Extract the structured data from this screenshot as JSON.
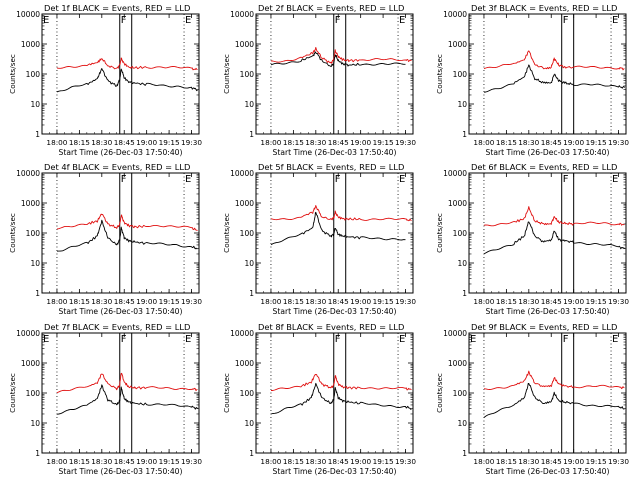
{
  "figure": {
    "title_suffix": "BLACK = Events, RED = LLD",
    "xlabel": "Start Time (26-Dec-03 17:50:40)",
    "ylabel": "Counts/sec",
    "colors": {
      "events": "#000000",
      "lld": "#e01010",
      "axes": "#000000"
    }
  },
  "chart_data": [
    {
      "type": "line",
      "title": "Det 1f BLACK = Events, RED = LLD",
      "detector": "Det 1f",
      "xlabel": "Start Time (26-Dec-03 17:50:40)",
      "ylabel": "Counts/sec",
      "yscale": "log",
      "ylim": [
        1,
        10000
      ],
      "y_ticks": [
        "1",
        "10",
        "100",
        "1000",
        "10000"
      ],
      "x_ticks": [
        "18:00",
        "18:15",
        "18:30",
        "18:45",
        "19:00",
        "19:15",
        "19:30"
      ],
      "xlim_minutes_after_1750": [
        0,
        105
      ],
      "dotted_lines_min": [
        10,
        95
      ],
      "solid_lines_min": [
        52,
        60
      ],
      "markers": [
        {
          "label": "E",
          "at_min": 0
        },
        {
          "label": "F",
          "at_min": 52
        },
        {
          "label": "E",
          "at_min": 95
        }
      ],
      "x_minutes_after_1750": [
        10,
        20,
        30,
        37,
        40,
        44,
        50,
        52,
        53,
        55,
        58,
        62,
        70,
        80,
        90,
        100,
        104
      ],
      "series": [
        {
          "name": "LLD (red)",
          "values": [
            150,
            170,
            200,
            240,
            330,
            190,
            150,
            200,
            330,
            220,
            170,
            160,
            170,
            175,
            165,
            150,
            140
          ]
        },
        {
          "name": "Events (black)",
          "values": [
            25,
            35,
            45,
            70,
            150,
            60,
            40,
            65,
            150,
            75,
            55,
            50,
            45,
            42,
            40,
            35,
            30
          ]
        }
      ]
    },
    {
      "type": "line",
      "title": "Det 2f BLACK = Events, RED = LLD",
      "detector": "Det 2f",
      "xlabel": "Start Time (26-Dec-03 17:50:40)",
      "ylabel": "Counts/sec",
      "yscale": "log",
      "ylim": [
        1,
        10000
      ],
      "y_ticks": [
        "1",
        "10",
        "100",
        "1000",
        "10000"
      ],
      "x_ticks": [
        "18:00",
        "18:15",
        "18:30",
        "18:45",
        "19:00",
        "19:15",
        "19:30"
      ],
      "xlim_minutes_after_1750": [
        0,
        105
      ],
      "dotted_lines_min": [
        10,
        95
      ],
      "solid_lines_min": [
        52,
        60
      ],
      "markers": [
        {
          "label": "F",
          "at_min": 52
        },
        {
          "label": "E",
          "at_min": 95
        }
      ],
      "x_minutes_after_1750": [
        10,
        20,
        30,
        38,
        40,
        44,
        50,
        52,
        53,
        55,
        58,
        62,
        70,
        80,
        90,
        100,
        104
      ],
      "series": [
        {
          "name": "LLD (red)",
          "values": [
            260,
            280,
            350,
            500,
            700,
            350,
            230,
            300,
            600,
            380,
            300,
            280,
            290,
            300,
            300,
            290,
            280
          ]
        },
        {
          "name": "Events (black)",
          "values": [
            200,
            220,
            280,
            400,
            550,
            280,
            180,
            220,
            450,
            280,
            220,
            200,
            210,
            220,
            220,
            210,
            null
          ]
        }
      ]
    },
    {
      "type": "line",
      "title": "Det 3f BLACK = Events, RED = LLD",
      "detector": "Det 3f",
      "xlabel": "Start Time (26-Dec-03 17:50:40)",
      "ylabel": "Counts/sec",
      "yscale": "log",
      "ylim": [
        1,
        10000
      ],
      "y_ticks": [
        "1",
        "10",
        "100",
        "1000",
        "10000"
      ],
      "x_ticks": [
        "18:00",
        "18:15",
        "18:30",
        "18:45",
        "19:00",
        "19:15",
        "19:30"
      ],
      "xlim_minutes_after_1750": [
        0,
        105
      ],
      "dotted_lines_min": [
        10,
        95
      ],
      "solid_lines_min": [
        62,
        70
      ],
      "markers": [
        {
          "label": "F",
          "at_min": 62
        },
        {
          "label": "E",
          "at_min": 95
        }
      ],
      "x_minutes_after_1750": [
        10,
        20,
        30,
        37,
        40,
        44,
        50,
        55,
        57,
        60,
        64,
        70,
        80,
        90,
        100,
        104
      ],
      "series": [
        {
          "name": "LLD (red)",
          "values": [
            160,
            180,
            220,
            300,
            600,
            200,
            160,
            170,
            330,
            200,
            170,
            165,
            170,
            170,
            160,
            150
          ]
        },
        {
          "name": "Events (black)",
          "values": [
            25,
            35,
            50,
            80,
            200,
            70,
            50,
            50,
            100,
            60,
            50,
            45,
            45,
            40,
            38,
            35
          ]
        }
      ]
    },
    {
      "type": "line",
      "title": "Det 4f BLACK = Events, RED = LLD",
      "detector": "Det 4f",
      "xlabel": "Start Time (26-Dec-03 17:50:40)",
      "ylabel": "Counts/sec",
      "yscale": "log",
      "ylim": [
        1,
        10000
      ],
      "y_ticks": [
        "1",
        "10",
        "100",
        "1000",
        "10000"
      ],
      "x_ticks": [
        "18:00",
        "18:15",
        "18:30",
        "18:45",
        "19:00",
        "19:15",
        "19:30"
      ],
      "xlim_minutes_after_1750": [
        0,
        105
      ],
      "dotted_lines_min": [
        10,
        95
      ],
      "solid_lines_min": [
        52,
        60
      ],
      "markers": [
        {
          "label": "F",
          "at_min": 52
        },
        {
          "label": "E",
          "at_min": 95
        }
      ],
      "x_minutes_after_1750": [
        10,
        20,
        30,
        37,
        40,
        44,
        50,
        52,
        53,
        55,
        58,
        62,
        70,
        80,
        90,
        100,
        104
      ],
      "series": [
        {
          "name": "LLD (red)",
          "values": [
            140,
            160,
            200,
            250,
            450,
            200,
            150,
            190,
            400,
            220,
            180,
            160,
            170,
            180,
            170,
            150,
            120
          ]
        },
        {
          "name": "Events (black)",
          "values": [
            25,
            35,
            45,
            80,
            250,
            70,
            40,
            60,
            150,
            70,
            55,
            50,
            45,
            42,
            40,
            35,
            30
          ]
        }
      ]
    },
    {
      "type": "line",
      "title": "Det 5f BLACK = Events, RED = LLD",
      "detector": "Det 5f",
      "xlabel": "Start Time (26-Dec-03 17:50:40)",
      "ylabel": "Counts/sec",
      "yscale": "log",
      "ylim": [
        1,
        10000
      ],
      "y_ticks": [
        "1",
        "10",
        "100",
        "1000",
        "10000"
      ],
      "x_ticks": [
        "18:00",
        "18:15",
        "18:30",
        "18:45",
        "19:00",
        "19:15",
        "19:30"
      ],
      "xlim_minutes_after_1750": [
        0,
        105
      ],
      "dotted_lines_min": [
        10,
        95
      ],
      "solid_lines_min": [
        52,
        60
      ],
      "markers": [
        {
          "label": "F",
          "at_min": 52
        },
        {
          "label": "E",
          "at_min": 95
        }
      ],
      "x_minutes_after_1750": [
        10,
        20,
        30,
        38,
        40,
        44,
        50,
        52,
        53,
        55,
        58,
        62,
        70,
        80,
        90,
        100,
        104
      ],
      "series": [
        {
          "name": "LLD (red)",
          "values": [
            280,
            290,
            340,
            500,
            800,
            350,
            280,
            320,
            500,
            340,
            300,
            290,
            290,
            290,
            285,
            280,
            260
          ]
        },
        {
          "name": "Events (black)",
          "values": [
            40,
            60,
            90,
            150,
            500,
            120,
            80,
            90,
            150,
            90,
            80,
            75,
            70,
            68,
            65,
            60,
            null
          ]
        }
      ]
    },
    {
      "type": "line",
      "title": "Det 6f BLACK = Events, RED = LLD",
      "detector": "Det 6f",
      "xlabel": "Start Time (26-Dec-03 17:50:40)",
      "ylabel": "Counts/sec",
      "yscale": "log",
      "ylim": [
        1,
        10000
      ],
      "y_ticks": [
        "1",
        "10",
        "100",
        "1000",
        "10000"
      ],
      "x_ticks": [
        "18:00",
        "18:15",
        "18:30",
        "18:45",
        "19:00",
        "19:15",
        "19:30"
      ],
      "xlim_minutes_after_1750": [
        0,
        105
      ],
      "dotted_lines_min": [
        10,
        95
      ],
      "solid_lines_min": [
        62,
        70
      ],
      "markers": [
        {
          "label": "F",
          "at_min": 62
        },
        {
          "label": "E",
          "at_min": 95
        }
      ],
      "x_minutes_after_1750": [
        10,
        20,
        30,
        37,
        40,
        44,
        50,
        55,
        57,
        60,
        64,
        70,
        80,
        90,
        100,
        104
      ],
      "series": [
        {
          "name": "LLD (red)",
          "values": [
            180,
            200,
            230,
            300,
            700,
            250,
            200,
            210,
            350,
            230,
            210,
            200,
            210,
            210,
            200,
            190
          ]
        },
        {
          "name": "Events (black)",
          "values": [
            20,
            30,
            45,
            80,
            250,
            80,
            50,
            55,
            120,
            60,
            55,
            50,
            45,
            40,
            35,
            30
          ]
        }
      ]
    },
    {
      "type": "line",
      "title": "Det 7f BLACK = Events, RED = LLD",
      "detector": "Det 7f",
      "xlabel": "Start Time (26-Dec-03 17:50:40)",
      "ylabel": "Counts/sec",
      "yscale": "log",
      "ylim": [
        1,
        10000
      ],
      "y_ticks": [
        "1",
        "10",
        "100",
        "1000",
        "10000"
      ],
      "x_ticks": [
        "18:00",
        "18:15",
        "18:30",
        "18:45",
        "19:00",
        "19:15",
        "19:30"
      ],
      "xlim_minutes_after_1750": [
        0,
        105
      ],
      "dotted_lines_min": [
        10,
        95
      ],
      "solid_lines_min": [
        52,
        60
      ],
      "markers": [
        {
          "label": "E",
          "at_min": 0
        },
        {
          "label": "F",
          "at_min": 52
        },
        {
          "label": "E",
          "at_min": 95
        }
      ],
      "x_minutes_after_1750": [
        10,
        20,
        30,
        37,
        40,
        44,
        50,
        52,
        53,
        55,
        58,
        62,
        70,
        80,
        90,
        100,
        104
      ],
      "series": [
        {
          "name": "LLD (red)",
          "values": [
            110,
            130,
            160,
            220,
            450,
            200,
            140,
            180,
            500,
            230,
            160,
            150,
            150,
            150,
            145,
            140,
            130
          ]
        },
        {
          "name": "Events (black)",
          "values": [
            20,
            30,
            40,
            65,
            180,
            60,
            40,
            55,
            150,
            65,
            50,
            45,
            42,
            40,
            38,
            35,
            30
          ]
        }
      ]
    },
    {
      "type": "line",
      "title": "Det 8f BLACK = Events, RED = LLD",
      "detector": "Det 8f",
      "xlabel": "Start Time (26-Dec-03 17:50:40)",
      "ylabel": "Counts/sec",
      "yscale": "log",
      "ylim": [
        1,
        10000
      ],
      "y_ticks": [
        "1",
        "10",
        "100",
        "1000",
        "10000"
      ],
      "x_ticks": [
        "18:00",
        "18:15",
        "18:30",
        "18:45",
        "19:00",
        "19:15",
        "19:30"
      ],
      "xlim_minutes_after_1750": [
        0,
        105
      ],
      "dotted_lines_min": [
        10,
        95
      ],
      "solid_lines_min": [
        52,
        60
      ],
      "markers": [
        {
          "label": "F",
          "at_min": 52
        },
        {
          "label": "E",
          "at_min": 95
        }
      ],
      "x_minutes_after_1750": [
        10,
        20,
        30,
        37,
        40,
        44,
        50,
        52,
        53,
        55,
        58,
        62,
        70,
        80,
        90,
        100,
        104
      ],
      "series": [
        {
          "name": "LLD (red)",
          "values": [
            120,
            140,
            170,
            230,
            450,
            200,
            150,
            180,
            380,
            200,
            160,
            150,
            150,
            150,
            145,
            140,
            130
          ]
        },
        {
          "name": "Events (black)",
          "values": [
            20,
            30,
            40,
            70,
            200,
            70,
            45,
            60,
            150,
            70,
            55,
            50,
            45,
            40,
            38,
            35,
            30
          ]
        }
      ]
    },
    {
      "type": "line",
      "title": "Det 9f BLACK = Events, RED = LLD",
      "detector": "Det 9f",
      "xlabel": "Start Time (26-Dec-03 17:50:40)",
      "ylabel": "Counts/sec",
      "yscale": "log",
      "ylim": [
        1,
        10000
      ],
      "y_ticks": [
        "1",
        "10",
        "100",
        "1000",
        "10000"
      ],
      "x_ticks": [
        "18:00",
        "18:15",
        "18:30",
        "18:45",
        "19:00",
        "19:15",
        "19:30"
      ],
      "xlim_minutes_after_1750": [
        0,
        105
      ],
      "dotted_lines_min": [
        10,
        95
      ],
      "solid_lines_min": [
        62,
        70
      ],
      "markers": [
        {
          "label": "E",
          "at_min": 0
        },
        {
          "label": "F",
          "at_min": 62
        },
        {
          "label": "E",
          "at_min": 95
        }
      ],
      "x_minutes_after_1750": [
        10,
        20,
        30,
        37,
        40,
        44,
        50,
        55,
        57,
        60,
        64,
        70,
        80,
        90,
        100,
        104
      ],
      "series": [
        {
          "name": "LLD (red)",
          "values": [
            130,
            150,
            180,
            250,
            500,
            220,
            160,
            170,
            320,
            200,
            170,
            160,
            165,
            165,
            155,
            150
          ]
        },
        {
          "name": "Events (black)",
          "values": [
            15,
            25,
            40,
            70,
            220,
            70,
            45,
            50,
            100,
            55,
            50,
            45,
            40,
            38,
            35,
            30
          ]
        }
      ]
    }
  ]
}
